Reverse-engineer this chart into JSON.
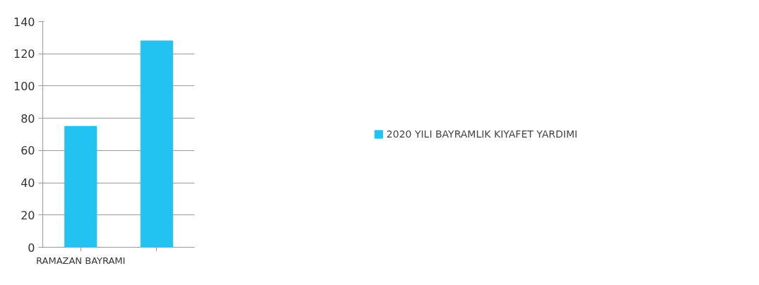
{
  "chart_data": {
    "type": "bar",
    "categories": [
      "RAMAZAN BAYRAMI",
      null
    ],
    "series": [
      {
        "name": "2020 YILI BAYRAMLIK KIYAFET YARDIMI",
        "color": "#22c3f1",
        "values": [
          75,
          128
        ]
      }
    ],
    "ylim": [
      0,
      140
    ],
    "yticks": [
      0,
      20,
      40,
      60,
      80,
      100,
      120,
      140
    ],
    "grid": "y",
    "legend": "right"
  }
}
